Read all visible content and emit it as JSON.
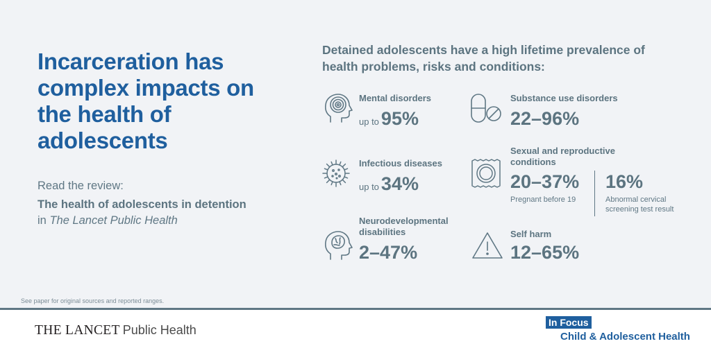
{
  "headline": "Incarceration has complex impacts on the health of adolescents",
  "review": {
    "label": "Read the review:",
    "title": "The health of adolescents in detention",
    "connector": "in",
    "journal": "The Lancet Public Health"
  },
  "intro": "Detained adolescents have a high lifetime prevalence of health problems, risks and conditions:",
  "items": [
    {
      "category": "Mental disorders",
      "prefix": "up to",
      "value": "95%",
      "icon": "head-mind-icon"
    },
    {
      "category": "Substance use disorders",
      "value": "22–96%",
      "icon": "pill-capsule-icon"
    },
    {
      "category": "Infectious diseases",
      "prefix": "up to",
      "value": "34%",
      "icon": "virus-icon"
    },
    {
      "category": "Sexual and reproductive conditions",
      "value": "20–37%",
      "note": "Pregnant before 19",
      "value2": "16%",
      "note2": "Abnormal cervical screening test result",
      "icon": "condom-icon"
    },
    {
      "category": "Neurodevelopmental disabilities",
      "value": "2–47%",
      "icon": "head-brain-icon"
    },
    {
      "category": "Self harm",
      "value": "12–65%",
      "icon": "warning-triangle-icon"
    }
  ],
  "footnote": "See paper for original sources and reported ranges.",
  "footer": {
    "journal_main": "THE LANCET",
    "journal_sub": "Public Health",
    "badge": "In Focus",
    "series": "Child & Adolescent Health"
  },
  "colors": {
    "brand": "#1f5f9e",
    "text": "#5f7784",
    "background": "#f1f3f6"
  }
}
